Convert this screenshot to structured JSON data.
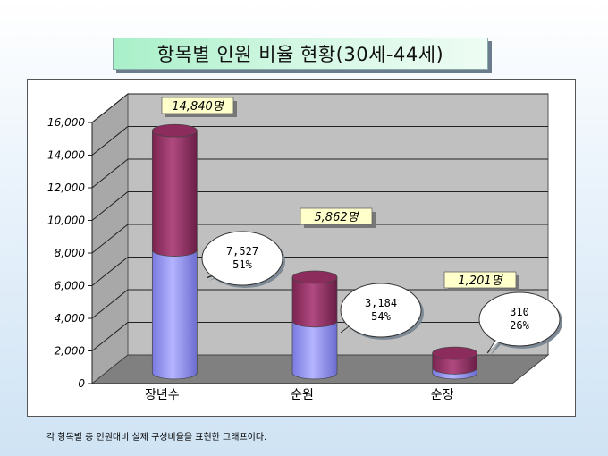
{
  "title": "항목별 인원 비율 현황(30세-44세)",
  "footnote": "각 항목별 총 인원대비 실제 구성비율을 표현한 그래프이다.",
  "chart_data": {
    "type": "bar",
    "style": "3d-stacked-cylinder",
    "categories": [
      "장년수",
      "순원",
      "순장"
    ],
    "series": [
      {
        "values": [
          7527,
          3184,
          310
        ],
        "color": "#9999ff"
      },
      {
        "values": [
          7313,
          2678,
          891
        ],
        "color": "#993366"
      }
    ],
    "totals": [
      14840,
      5862,
      1201
    ],
    "total_labels": [
      "14,840명",
      "5,862명",
      "1,201명"
    ],
    "callouts": [
      {
        "value": "7,527",
        "percent": "51%"
      },
      {
        "value": "3,184",
        "percent": "54%"
      },
      {
        "value": "310",
        "percent": "26%"
      }
    ],
    "y_ticks": [
      "0",
      "2,000",
      "4,000",
      "6,000",
      "8,000",
      "10,000",
      "12,000",
      "14,000",
      "16,000"
    ],
    "ylim": [
      0,
      16000
    ],
    "grid": true,
    "legend": "none",
    "colors": {
      "wall": "#c0c0c0",
      "floor": "#808080",
      "label_box": "#ffffcc"
    }
  }
}
